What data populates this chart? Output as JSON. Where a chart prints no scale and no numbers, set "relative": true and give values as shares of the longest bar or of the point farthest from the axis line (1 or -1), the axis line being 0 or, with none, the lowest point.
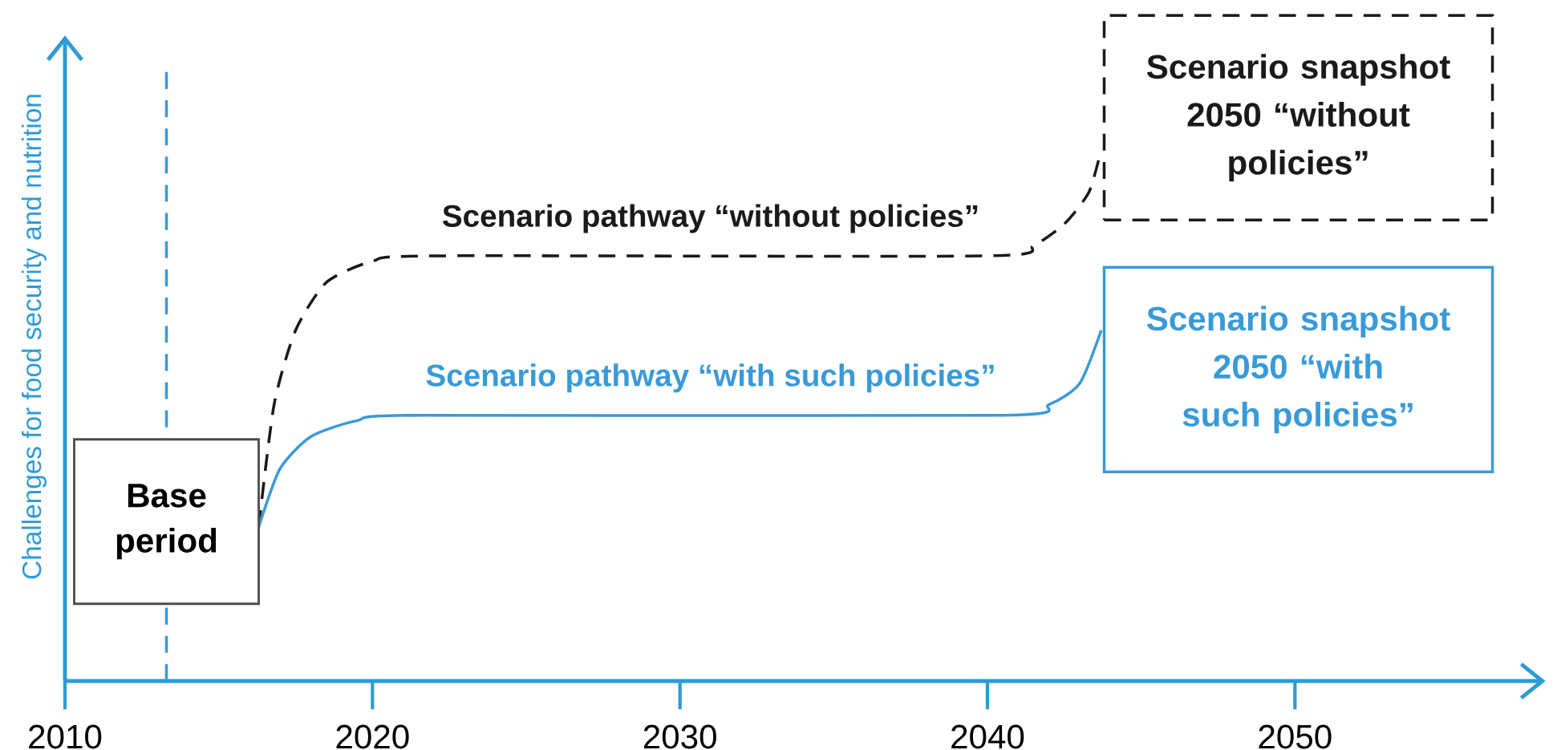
{
  "chart_data": {
    "type": "line",
    "relative": true,
    "ylabel": "Challenges for food security and nutrition",
    "xlim": [
      2010,
      2058
    ],
    "xticks": [
      2010,
      2020,
      2030,
      2040,
      2050
    ],
    "marker": "none",
    "legend": false,
    "grid": false,
    "series": [
      {
        "name": "Scenario pathway “without policies”",
        "color": "#1a1a1a",
        "line_style": "dashed",
        "x": [
          2016.3,
          2016.8,
          2017.5,
          2018.5,
          2020,
          2022,
          2040,
          2041.5,
          2042.5,
          2043.3,
          2043.7
        ],
        "values": [
          0.29,
          0.52,
          0.66,
          0.75,
          0.79,
          0.8,
          0.8,
          0.82,
          0.86,
          0.92,
          1.0
        ]
      },
      {
        "name": "Scenario pathway “with such policies”",
        "color": "#3a9ad9",
        "line_style": "solid",
        "x": [
          2016.3,
          2017,
          2018,
          2019.5,
          2021.5,
          2040.5,
          2042,
          2043,
          2043.7
        ],
        "values": [
          0.29,
          0.4,
          0.46,
          0.49,
          0.5,
          0.5,
          0.52,
          0.56,
          0.66
        ]
      }
    ],
    "ref_lines": [
      {
        "axis": "x",
        "value": 2013.3,
        "color": "#3a9ad9",
        "line_style": "dashed"
      }
    ],
    "annotations": [
      "Base period",
      "Scenario snapshot 2050 “without policies”",
      "Scenario snapshot 2050 “with such policies”"
    ]
  }
}
